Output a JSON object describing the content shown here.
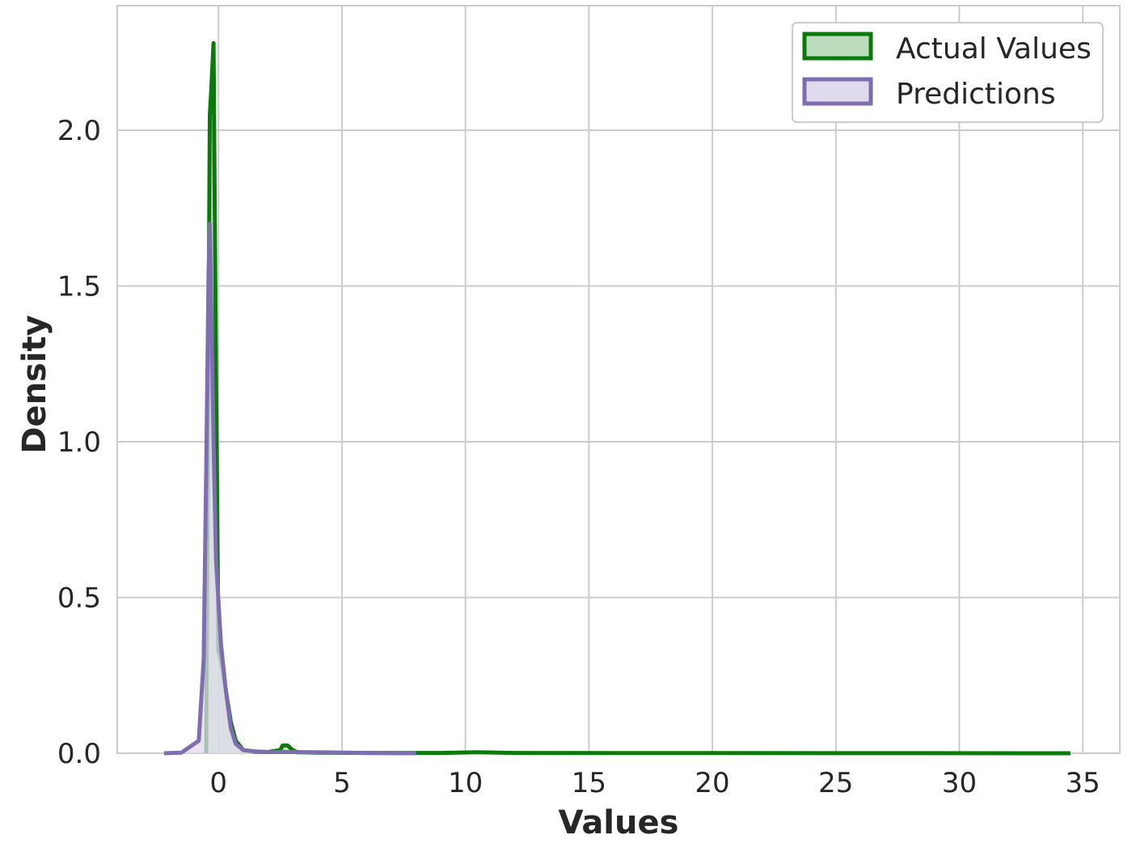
{
  "chart_data": {
    "type": "area",
    "xlabel": "Values",
    "ylabel": "Density",
    "xlim": [
      -4.1,
      36.5
    ],
    "ylim": [
      0,
      2.4
    ],
    "xticks": [
      0,
      5,
      10,
      15,
      20,
      25,
      30,
      35
    ],
    "yticks": [
      0.0,
      0.5,
      1.0,
      1.5,
      2.0
    ],
    "xtick_labels": [
      "0",
      "5",
      "10",
      "15",
      "20",
      "25",
      "30",
      "35"
    ],
    "ytick_labels": [
      "0.0",
      "0.5",
      "1.0",
      "1.5",
      "2.0"
    ],
    "grid": true,
    "legend_position": "top-right",
    "series": [
      {
        "name": "Actual Values",
        "color": "#0a7a0a",
        "fill": "#bcdcbc",
        "x": [
          -0.5,
          -0.35,
          -0.3,
          -0.2,
          -0.1,
          0.0,
          0.1,
          0.3,
          0.5,
          0.7,
          1.0,
          1.5,
          2.0,
          2.5,
          2.6,
          2.8,
          3.0,
          3.2,
          4.0,
          6.0,
          9.0,
          10.5,
          12.0,
          20.0,
          34.5
        ],
        "y": [
          0.0,
          2.05,
          2.12,
          2.28,
          1.2,
          0.33,
          0.3,
          0.2,
          0.1,
          0.04,
          0.01,
          0.005,
          0.004,
          0.01,
          0.025,
          0.025,
          0.01,
          0.003,
          0.002,
          0.001,
          0.001,
          0.003,
          0.001,
          0.0005,
          0.0
        ]
      },
      {
        "name": "Predictions",
        "color": "#7e6db0",
        "fill": "#e0dbec",
        "x": [
          -2.2,
          -1.5,
          -0.8,
          -0.6,
          -0.5,
          -0.4,
          -0.35,
          -0.3,
          -0.2,
          -0.1,
          0.1,
          0.3,
          0.5,
          0.7,
          1.0,
          1.5,
          2.0,
          3.0,
          4.0,
          6.0,
          8.0
        ],
        "y": [
          0.0,
          0.002,
          0.04,
          0.3,
          0.9,
          1.55,
          1.7,
          1.45,
          1.0,
          0.62,
          0.35,
          0.2,
          0.08,
          0.03,
          0.01,
          0.006,
          0.004,
          0.004,
          0.003,
          0.001,
          0.0
        ]
      }
    ]
  },
  "legend": {
    "items": [
      {
        "label": "Actual Values"
      },
      {
        "label": "Predictions"
      }
    ]
  }
}
